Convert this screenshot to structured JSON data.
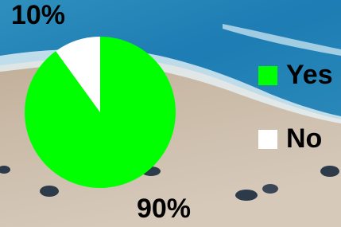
{
  "chart_data": {
    "type": "pie",
    "categories": [
      "Yes",
      "No"
    ],
    "values": [
      90,
      10
    ],
    "value_labels": [
      "90%",
      "10%"
    ],
    "colors": [
      "#00ff00",
      "#ffffff"
    ],
    "legend": "right"
  }
}
